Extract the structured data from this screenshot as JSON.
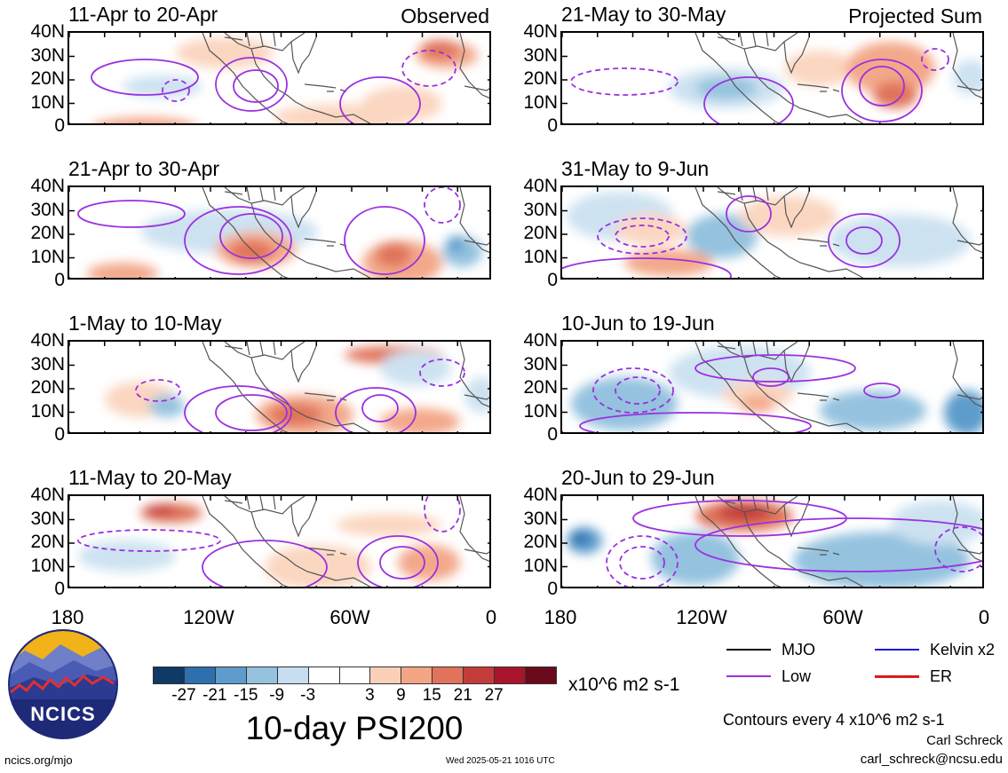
{
  "panels": [
    {
      "title": "11-Apr to 20-Apr",
      "corner": "Observed"
    },
    {
      "title": "21-Apr to 30-Apr",
      "corner": ""
    },
    {
      "title": "1-May to 10-May",
      "corner": ""
    },
    {
      "title": "11-May to 20-May",
      "corner": ""
    },
    {
      "title": "21-May to 30-May",
      "corner": "Projected Sum"
    },
    {
      "title": "31-May to 9-Jun",
      "corner": ""
    },
    {
      "title": "10-Jun to 19-Jun",
      "corner": ""
    },
    {
      "title": "20-Jun to 29-Jun",
      "corner": ""
    }
  ],
  "lat_labels": [
    "40N",
    "30N",
    "20N",
    "10N",
    "0"
  ],
  "lon_labels": [
    "180",
    "120W",
    "60W",
    "0"
  ],
  "colorbar": {
    "colors": [
      "#0d3a66",
      "#2e6fae",
      "#5d9ccc",
      "#94c2df",
      "#c6def0",
      "#ffffff",
      "#ffffff",
      "#fbd0b8",
      "#f3a584",
      "#e0735a",
      "#c43c3a",
      "#a8152b",
      "#6b0a1c"
    ],
    "ticks": [
      "-27",
      "-21",
      "-15",
      "-9",
      "-3",
      "3",
      "9",
      "15",
      "21",
      "27"
    ],
    "units": "x10^6 m2 s-1"
  },
  "title": "10-day PSI200",
  "legend": [
    {
      "label": "MJO",
      "color": "#000000"
    },
    {
      "label": "Kelvin x2",
      "color": "#1a1adc"
    },
    {
      "label": "Low",
      "color": "#9b30e0"
    },
    {
      "label": "ER",
      "color": "#e02020"
    }
  ],
  "contour_note": "Contours every 4 x10^6 m2 s-1",
  "author": "Carl Schreck",
  "email": "carl_schreck@ncsu.edu",
  "url": "ncics.org/mjo",
  "timestamp": "Wed 2025-05-21 1016 UTC",
  "logo_text": "NCICS"
}
